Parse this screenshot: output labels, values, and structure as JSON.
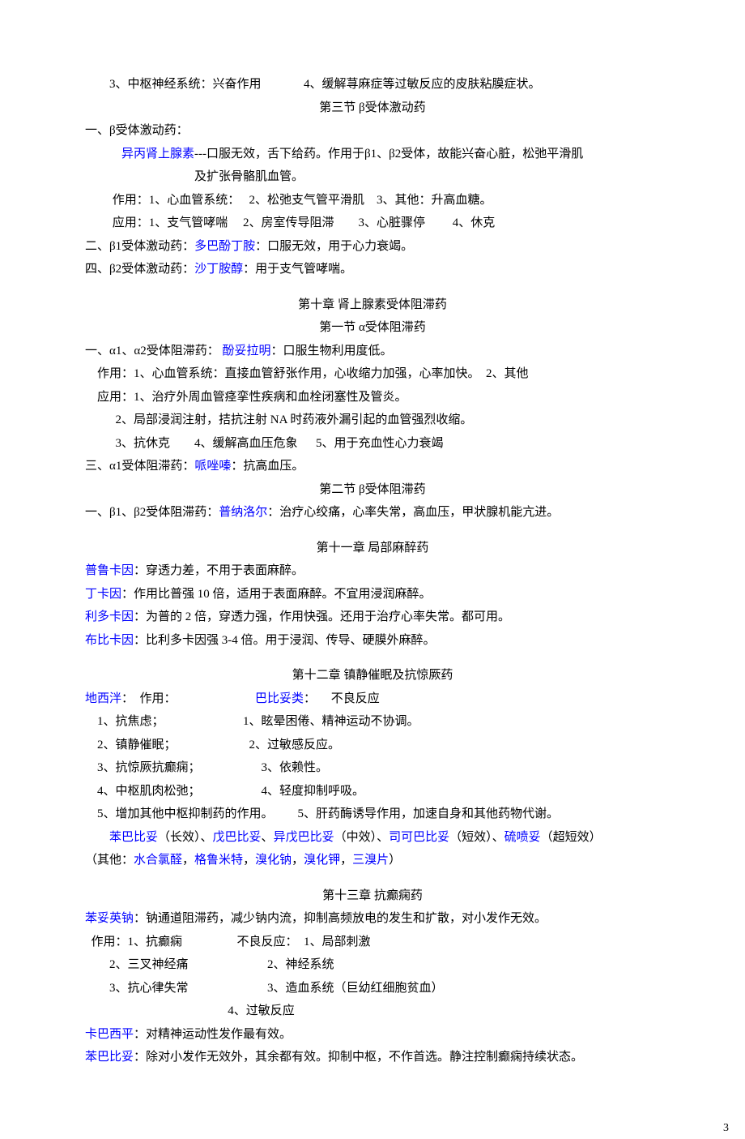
{
  "line1": "        3、中枢神经系统：兴奋作用              4、缓解荨麻症等过敏反应的皮肤粘膜症状。",
  "sec3_title": "第三节    β受体激动药",
  "beta_ag_1": "一、β受体激动药：",
  "beta_ag_2a": "异丙肾上腺素",
  "beta_ag_2b": "---口服无效，舌下给药。作用于β1、β2受体，故能兴奋心脏，松弛平滑肌",
  "beta_ag_2c": "及扩张骨骼肌血管。",
  "beta_ag_3": "         作用：1、心血管系统：   2、松弛支气管平滑肌    3、其他：升高血糖。",
  "beta_ag_4": "         应用：1、支气管哮喘     2、房室传导阻滞        3、心脏骤停         4、休克",
  "beta1_a": "二、β1受体激动药：",
  "beta1_b": "多巴酚丁胺",
  "beta1_c": "：口服无效，用于心力衰竭。",
  "beta2_a": "四、β2受体激动药：",
  "beta2_b": "沙丁胺醇",
  "beta2_c": "：用于支气管哮喘。",
  "ch10_title": "第十章    肾上腺素受体阻滞药",
  "ch10_s1": "第一节    α受体阻滞药",
  "a_block_1a": "一、α1、α2受体阻滞药：  ",
  "a_block_1b": "酚妥拉明",
  "a_block_1c": "：口服生物利用度低。",
  "a_block_2": "    作用：1、心血管系统：直接血管舒张作用，心收缩力加强，心率加快。  2、其他",
  "a_block_3": "    应用：1、治疗外周血管痉挛性疾病和血栓闭塞性及管炎。",
  "a_block_4": "          2、局部浸润注射，拮抗注射 NA 时药液外漏引起的血管强烈收缩。",
  "a_block_5": "          3、抗休克        4、缓解高血压危象      5、用于充血性心力衰竭",
  "a1_block_a": "三、α1受体阻滞药：",
  "a1_block_b": "哌唑嗪",
  "a1_block_c": "：抗高血压。",
  "ch10_s2": "第二节    β受体阻滞药",
  "b_block_a": "一、β1、β2受体阻滞药：",
  "b_block_b": "普纳洛尔",
  "b_block_c": "：治疗心绞痛，心率失常，高血压，甲状腺机能亢进。",
  "ch11_title": "第十一章    局部麻醉药",
  "anes_1a": "普鲁卡因",
  "anes_1b": "：穿透力差，不用于表面麻醉。",
  "anes_2a": "丁卡因",
  "anes_2b": "：作用比普强 10 倍，适用于表面麻醉。不宜用浸润麻醉。",
  "anes_3a": "利多卡因",
  "anes_3b": "：为普的 2 倍，穿透力强，作用快强。还用于治疗心率失常。都可用。",
  "anes_4a": "布比卡因",
  "anes_4b": "：比利多卡因强 3-4 倍。用于浸润、传导、硬膜外麻醉。",
  "ch12_title": "第十二章    镇静催眠及抗惊厥药",
  "dxp_a": "地西泮",
  "dxp_b": "：  作用：                          ",
  "bby_a": "巴比妥类",
  "bby_b": "：     不良反应",
  "row1": "    1、抗焦虑；                          1、眩晕困倦、精神运动不协调。",
  "row2": "    2、镇静催眠；                        2、过敏感反应。",
  "row3": "    3、抗惊厥抗癫痫；                    3、依赖性。",
  "row4": "    4、中枢肌肉松弛；                    4、轻度抑制呼吸。",
  "row5": "    5、增加其他中枢抑制药的作用。        5、肝药酶诱导作用，加速自身和其他药物代谢。",
  "barb_a": "苯巴比妥",
  "barb_b": "（长效）、",
  "barb_c": "戊巴比妥",
  "barb_d": "、",
  "barb_e": "异戊巴比妥",
  "barb_f": "（中效）、",
  "barb_g": "司可巴比妥",
  "barb_h": "（短效）、",
  "barb_i": "硫喷妥",
  "barb_j": "（超短效）",
  "other_a": "（其他：",
  "other_b": "水合氯醛",
  "other_c": "，",
  "other_d": "格鲁米特",
  "other_e": "，",
  "other_f": "溴化钠",
  "other_g": "，",
  "other_h": "溴化钾",
  "other_i": "，",
  "other_j": "三溴片",
  "other_k": "）",
  "ch13_title": "第十三章    抗癫痫药",
  "epi_1a": "苯妥英钠",
  "epi_1b": "：钠通道阻滞药，减少钠内流，抑制高频放电的发生和扩散，对小发作无效。",
  "epi_2": "  作用：1、抗癫痫                  不良反应：  1、局部刺激",
  "epi_3": "        2、三叉神经痛                          2、神经系统",
  "epi_4": "        3、抗心律失常                          3、造血系统（巨幼红细胞贫血）",
  "epi_5": "                                               4、过敏反应",
  "cbz_a": "卡巴西平",
  "cbz_b": "：对精神运动性发作最有效。",
  "pb_a": "苯巴比妥",
  "pb_b": "：除对小发作无效外，其余都有效。抑制中枢，不作首选。静注控制癫痫持续状态。",
  "page_number": "3"
}
